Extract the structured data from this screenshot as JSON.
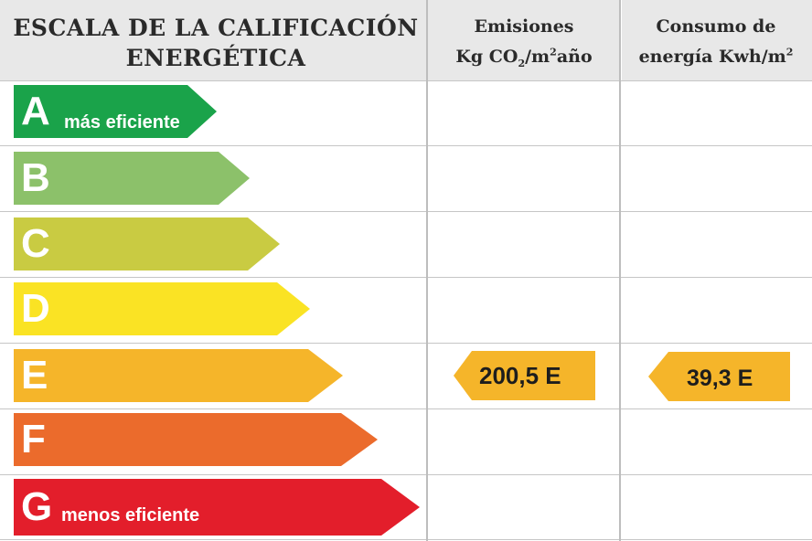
{
  "header": {
    "title_line1": "ESCALA DE LA CALIFICACIÓN",
    "title_line2": "ENERGÉTICA",
    "emissions_line1": "Emisiones",
    "emissions_line2_pre": "Kg CO",
    "emissions_line2_sub": "2",
    "emissions_line2_mid": "/m",
    "emissions_line2_sup": "2",
    "emissions_line2_post": "año",
    "consumption_line1": "Consumo de",
    "consumption_line2_pre": "energía Kwh/m",
    "consumption_line2_sup": "2"
  },
  "scale": [
    {
      "letter": "A",
      "label": "más eficiente",
      "color": "#1aa34a"
    },
    {
      "letter": "B",
      "label": "",
      "color": "#8cc16a"
    },
    {
      "letter": "C",
      "label": "",
      "color": "#c9cb42"
    },
    {
      "letter": "D",
      "label": "",
      "color": "#fae324"
    },
    {
      "letter": "E",
      "label": "",
      "color": "#f5b52a"
    },
    {
      "letter": "F",
      "label": "",
      "color": "#eb6b2c"
    },
    {
      "letter": "G",
      "label": "menos eficiente",
      "color": "#e31e2b"
    }
  ],
  "emissions": {
    "value": "200,5 E",
    "rating": "E",
    "color": "#f5b52a"
  },
  "consumption": {
    "value": "39,3 E",
    "rating": "E",
    "color": "#f5b52a"
  }
}
